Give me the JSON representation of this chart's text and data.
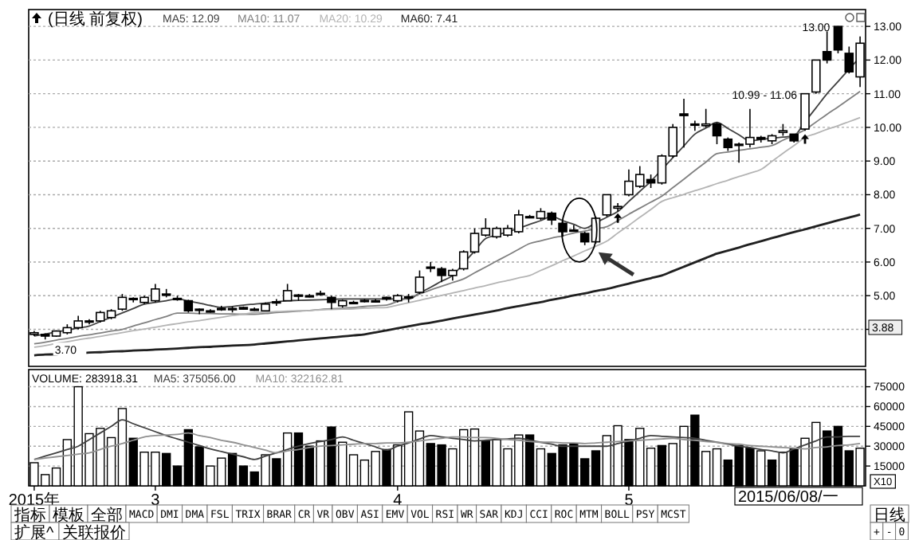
{
  "chart_data": [
    {
      "type": "candlestick",
      "title": "(日线 前复权)",
      "legend": "top left",
      "grid": "y",
      "tick_labels": "y",
      "categories": [
        null,
        null,
        null,
        null,
        null,
        null,
        null,
        null,
        null,
        null,
        null,
        null,
        null,
        null,
        null,
        null,
        null,
        null,
        null,
        null,
        null,
        null,
        null,
        null,
        null,
        null,
        null,
        null,
        null,
        null,
        null,
        null,
        null,
        null,
        null,
        null,
        null,
        null,
        null,
        null,
        null,
        null,
        null,
        null,
        null,
        null,
        null,
        null,
        null,
        null,
        null,
        null,
        null,
        null,
        null,
        null,
        null,
        null,
        null,
        null,
        null,
        null,
        null,
        null,
        null,
        null,
        null,
        null,
        null,
        null,
        null,
        null,
        null,
        null,
        null,
        null
      ],
      "ylim": [
        2.9,
        13.5
      ],
      "yticks": [
        {
          "value": 4,
          "label": null
        },
        {
          "value": 5,
          "label": "5.00"
        },
        {
          "value": 6,
          "label": "6.00"
        },
        {
          "value": 7,
          "label": "7.00"
        },
        {
          "value": 8,
          "label": "8.00"
        },
        {
          "value": 9,
          "label": "9.00"
        },
        {
          "value": 10,
          "label": "10.00"
        },
        {
          "value": 11,
          "label": "11.00"
        },
        {
          "value": 12,
          "label": "12.00"
        },
        {
          "value": 13,
          "label": "13.00"
        }
      ],
      "ohlc": [
        [
          3.85,
          3.95,
          3.8,
          3.9
        ],
        [
          3.85,
          3.88,
          3.7,
          3.8
        ],
        [
          3.8,
          3.97,
          3.78,
          3.95
        ],
        [
          3.9,
          4.15,
          3.85,
          4.05
        ],
        [
          4.05,
          4.4,
          4.0,
          4.25
        ],
        [
          4.22,
          4.3,
          4.15,
          4.25
        ],
        [
          4.25,
          4.55,
          4.2,
          4.5
        ],
        [
          4.35,
          4.6,
          4.3,
          4.55
        ],
        [
          4.6,
          5.05,
          4.55,
          4.95
        ],
        [
          4.9,
          4.95,
          4.8,
          4.92
        ],
        [
          4.8,
          5.0,
          4.75,
          4.95
        ],
        [
          4.85,
          5.35,
          4.8,
          5.2
        ],
        [
          5.05,
          5.2,
          4.95,
          5.05
        ],
        [
          4.9,
          5.0,
          4.85,
          4.92
        ],
        [
          4.85,
          4.88,
          4.5,
          4.55
        ],
        [
          4.6,
          4.62,
          4.45,
          4.6
        ],
        [
          4.55,
          4.6,
          4.5,
          4.52
        ],
        [
          4.6,
          4.7,
          4.55,
          4.62
        ],
        [
          4.6,
          4.68,
          4.5,
          4.62
        ],
        [
          4.65,
          4.68,
          4.58,
          4.6
        ],
        [
          4.6,
          4.65,
          4.55,
          4.58
        ],
        [
          4.55,
          4.8,
          4.55,
          4.75
        ],
        [
          4.8,
          4.9,
          4.7,
          4.82
        ],
        [
          4.85,
          5.35,
          4.85,
          5.15
        ],
        [
          5.0,
          5.05,
          4.85,
          5.02
        ],
        [
          5.0,
          5.05,
          4.95,
          4.98
        ],
        [
          5.05,
          5.15,
          5.0,
          5.07
        ],
        [
          4.95,
          5.0,
          4.6,
          4.8
        ],
        [
          4.7,
          4.88,
          4.65,
          4.85
        ],
        [
          4.8,
          4.85,
          4.75,
          4.78
        ],
        [
          4.85,
          4.9,
          4.8,
          4.86
        ],
        [
          4.85,
          4.9,
          4.8,
          4.84
        ],
        [
          4.95,
          4.97,
          4.85,
          4.9
        ],
        [
          4.85,
          5.05,
          4.8,
          5.0
        ],
        [
          4.95,
          5.05,
          4.8,
          4.97
        ],
        [
          5.1,
          5.75,
          5.05,
          5.55
        ],
        [
          5.85,
          6.0,
          5.7,
          5.82
        ],
        [
          5.8,
          5.85,
          5.4,
          5.6
        ],
        [
          5.6,
          5.8,
          5.45,
          5.75
        ],
        [
          5.8,
          6.35,
          5.75,
          6.3
        ],
        [
          6.3,
          7.0,
          6.25,
          6.85
        ],
        [
          6.8,
          7.3,
          6.75,
          7.0
        ],
        [
          6.75,
          7.05,
          6.7,
          7.0
        ],
        [
          6.8,
          7.1,
          6.75,
          7.0
        ],
        [
          6.9,
          7.55,
          6.85,
          7.4
        ],
        [
          7.35,
          7.4,
          7.3,
          7.35
        ],
        [
          7.3,
          7.6,
          7.25,
          7.5
        ],
        [
          7.45,
          7.5,
          7.1,
          7.25
        ],
        [
          7.15,
          7.2,
          6.75,
          6.9
        ],
        [
          6.95,
          7.1,
          6.9,
          6.95
        ],
        [
          6.85,
          6.9,
          6.5,
          6.6
        ],
        [
          6.6,
          7.35,
          6.55,
          7.3
        ],
        [
          7.4,
          8.0,
          7.35,
          8.0
        ],
        [
          7.6,
          7.75,
          7.5,
          7.65
        ],
        [
          8.0,
          8.75,
          7.95,
          8.4
        ],
        [
          8.25,
          8.85,
          8.2,
          8.6
        ],
        [
          8.45,
          8.6,
          8.2,
          8.35
        ],
        [
          8.35,
          9.2,
          8.3,
          9.15
        ],
        [
          9.15,
          10.1,
          9.1,
          10.0
        ],
        [
          10.4,
          10.85,
          9.4,
          10.35
        ],
        [
          10.1,
          10.2,
          9.9,
          10.1
        ],
        [
          10.05,
          10.55,
          10.0,
          10.1
        ],
        [
          10.1,
          10.15,
          9.5,
          9.75
        ],
        [
          9.65,
          9.7,
          9.3,
          9.4
        ],
        [
          9.5,
          9.55,
          8.95,
          9.5
        ],
        [
          9.5,
          10.55,
          9.4,
          9.7
        ],
        [
          9.7,
          9.75,
          9.55,
          9.65
        ],
        [
          9.6,
          9.8,
          9.5,
          9.75
        ],
        [
          9.85,
          10.1,
          9.75,
          9.9
        ],
        [
          9.8,
          9.8,
          9.55,
          9.6
        ],
        [
          9.95,
          11.0,
          9.9,
          11.0
        ],
        [
          11.05,
          12.0,
          11.0,
          12.0
        ],
        [
          12.25,
          12.85,
          11.9,
          12.0
        ],
        [
          13.0,
          13.0,
          12.2,
          12.3
        ],
        [
          12.2,
          12.4,
          11.6,
          11.65
        ],
        [
          11.5,
          12.7,
          11.2,
          12.5
        ]
      ],
      "series": [
        {
          "type": "line",
          "name": "MA5: 12.09",
          "color": "#404040",
          "values": [
            3.8,
            3.86,
            3.92,
            3.98,
            4.04,
            4.1,
            4.23,
            4.36,
            4.49,
            4.62,
            4.75,
            4.8,
            4.85,
            4.9,
            4.84,
            4.78,
            4.71,
            4.65,
            4.68,
            4.72,
            4.75,
            4.78,
            4.82,
            4.85,
            4.86,
            4.87,
            4.88,
            4.89,
            4.9,
            4.9,
            4.9,
            4.9,
            4.9,
            4.9,
            4.9,
            5.08,
            5.25,
            5.43,
            5.6,
            5.97,
            6.33,
            6.7,
            6.8,
            6.9,
            7.0,
            7.12,
            7.23,
            7.35,
            7.23,
            7.12,
            7.0,
            7.17,
            7.33,
            7.5,
            7.8,
            8.1,
            8.4,
            8.75,
            9.1,
            9.45,
            9.8,
            9.98,
            10.15,
            9.97,
            9.78,
            9.6,
            9.64,
            9.68,
            9.71,
            9.75,
            10.17,
            10.58,
            11.0,
            11.36,
            11.73,
            12.09
          ]
        },
        {
          "type": "line",
          "name": "MA10: 11.07",
          "color": "#808080",
          "values": [
            3.57,
            3.62,
            3.68,
            3.73,
            3.79,
            3.84,
            3.89,
            3.95,
            4.0,
            4.1,
            4.19,
            4.29,
            4.38,
            4.48,
            4.48,
            4.47,
            4.47,
            4.46,
            4.46,
            4.45,
            4.45,
            4.47,
            4.5,
            4.52,
            4.54,
            4.56,
            4.59,
            4.61,
            4.63,
            4.65,
            4.68,
            4.7,
            4.72,
            4.83,
            4.94,
            5.05,
            5.17,
            5.28,
            5.39,
            5.5,
            5.68,
            5.85,
            6.03,
            6.2,
            6.38,
            6.55,
            6.63,
            6.71,
            6.78,
            6.86,
            6.92,
            6.99,
            7.05,
            7.23,
            7.42,
            7.6,
            7.78,
            7.96,
            8.21,
            8.46,
            8.72,
            8.97,
            9.22,
            9.27,
            9.32,
            9.36,
            9.41,
            9.46,
            9.62,
            9.77,
            9.93,
            10.16,
            10.39,
            10.61,
            10.84,
            11.07
          ]
        },
        {
          "type": "line",
          "name": "MA20: 10.29",
          "color": "#b4b4b4",
          "values": [
            3.47,
            3.52,
            3.58,
            3.63,
            3.69,
            3.74,
            3.79,
            3.85,
            3.9,
            3.96,
            4.01,
            4.06,
            4.12,
            4.17,
            4.22,
            4.26,
            4.31,
            4.36,
            4.41,
            4.45,
            4.5,
            4.51,
            4.53,
            4.54,
            4.55,
            4.56,
            4.58,
            4.59,
            4.6,
            4.61,
            4.63,
            4.64,
            4.65,
            4.72,
            4.79,
            4.86,
            4.94,
            5.01,
            5.08,
            5.15,
            5.23,
            5.3,
            5.38,
            5.45,
            5.53,
            5.6,
            5.75,
            5.89,
            6.04,
            6.18,
            6.33,
            6.47,
            6.62,
            6.86,
            7.09,
            7.33,
            7.56,
            7.8,
            7.91,
            8.01,
            8.12,
            8.22,
            8.33,
            8.43,
            8.54,
            8.64,
            8.75,
            8.99,
            9.23,
            9.46,
            9.7,
            9.82,
            9.94,
            10.05,
            10.17,
            10.29
          ]
        },
        {
          "type": "line",
          "name": "MA60: 7.41",
          "color": "#202020",
          "values": [
            3.23,
            3.25,
            3.26,
            3.28,
            3.29,
            3.31,
            3.32,
            3.34,
            3.35,
            3.37,
            3.38,
            3.4,
            3.41,
            3.43,
            3.45,
            3.47,
            3.48,
            3.5,
            3.52,
            3.53,
            3.55,
            3.58,
            3.61,
            3.64,
            3.67,
            3.7,
            3.73,
            3.76,
            3.79,
            3.82,
            3.85,
            3.91,
            3.97,
            4.03,
            4.09,
            4.15,
            4.2,
            4.26,
            4.32,
            4.38,
            4.44,
            4.5,
            4.56,
            4.63,
            4.69,
            4.75,
            4.81,
            4.88,
            4.94,
            5.01,
            5.07,
            5.14,
            5.2,
            5.28,
            5.36,
            5.44,
            5.52,
            5.6,
            5.73,
            5.86,
            5.99,
            6.12,
            6.25,
            6.34,
            6.43,
            6.53,
            6.62,
            6.71,
            6.8,
            6.89,
            6.97,
            7.06,
            7.15,
            7.24,
            7.32,
            7.41
          ]
        }
      ],
      "annotations": [
        "13.00",
        "10.99 - 11.06",
        "3.70",
        "3.88"
      ]
    },
    {
      "type": "bar",
      "legend": "top left",
      "grid": "y",
      "ylabel": "X10",
      "categories": [
        "2015年",
        null,
        null,
        null,
        null,
        null,
        null,
        null,
        null,
        null,
        null,
        "3",
        null,
        null,
        null,
        null,
        null,
        null,
        null,
        null,
        null,
        null,
        null,
        null,
        null,
        null,
        null,
        null,
        null,
        null,
        null,
        null,
        null,
        "4",
        null,
        null,
        null,
        null,
        null,
        null,
        null,
        null,
        null,
        null,
        null,
        null,
        null,
        null,
        null,
        null,
        null,
        null,
        null,
        null,
        "5",
        null,
        null,
        null,
        null,
        null,
        null,
        null,
        null,
        null,
        null,
        null,
        null,
        null,
        null,
        null,
        null,
        null,
        null,
        null,
        null,
        null
      ],
      "ylim": [
        0,
        88000
      ],
      "yticks": [
        15000,
        30000,
        45000,
        60000,
        75000
      ],
      "series": [
        {
          "type": "bar",
          "name": "VOLUME: 283918.31",
          "values": [
            17500,
            8500,
            13500,
            35000,
            75000,
            39500,
            43500,
            36500,
            58500,
            36000,
            25500,
            25500,
            24500,
            15000,
            42500,
            29500,
            15000,
            21000,
            24500,
            15000,
            10500,
            23500,
            20500,
            40000,
            40000,
            30000,
            34000,
            44500,
            33000,
            23500,
            19500,
            26000,
            27500,
            31000,
            56000,
            41500,
            32000,
            31000,
            28000,
            42500,
            43000,
            34000,
            35000,
            28000,
            38500,
            38500,
            28000,
            24500,
            31000,
            32000,
            20500,
            26500,
            38000,
            45500,
            35000,
            43500,
            28500,
            30500,
            32000,
            45000,
            53500,
            26000,
            28000,
            19500,
            30500,
            28500,
            26500,
            19500,
            25500,
            28500,
            36000,
            48000,
            41500,
            45000,
            26500,
            28500
          ],
          "colors": [
            "#ffffff",
            "#ffffff",
            "#ffffff",
            "#ffffff",
            "#ffffff",
            "#ffffff",
            "#ffffff",
            "#ffffff",
            "#ffffff",
            "#000000",
            "#ffffff",
            "#ffffff",
            "#000000",
            "#000000",
            "#000000",
            "#000000",
            "#ffffff",
            "#ffffff",
            "#000000",
            "#000000",
            "#000000",
            "#ffffff",
            "#000000",
            "#ffffff",
            "#000000",
            "#000000",
            "#ffffff",
            "#000000",
            "#ffffff",
            "#ffffff",
            "#ffffff",
            "#ffffff",
            "#000000",
            "#ffffff",
            "#ffffff",
            "#ffffff",
            "#000000",
            "#000000",
            "#ffffff",
            "#ffffff",
            "#ffffff",
            "#000000",
            "#ffffff",
            "#ffffff",
            "#ffffff",
            "#000000",
            "#ffffff",
            "#000000",
            "#000000",
            "#000000",
            "#000000",
            "#000000",
            "#ffffff",
            "#ffffff",
            "#000000",
            "#ffffff",
            "#ffffff",
            "#000000",
            "#ffffff",
            "#ffffff",
            "#000000",
            "#ffffff",
            "#ffffff",
            "#000000",
            "#000000",
            "#000000",
            "#ffffff",
            "#000000",
            "#ffffff",
            "#000000",
            "#ffffff",
            "#ffffff",
            "#000000",
            "#000000",
            "#000000",
            "#ffffff"
          ]
        },
        {
          "type": "line",
          "name": "MA5: 375056.00",
          "color": "#404040",
          "values": [
            20000,
            22500,
            25000,
            27500,
            30000,
            35000,
            40000,
            45000,
            50000,
            47000,
            44000,
            41000,
            38000,
            35500,
            33000,
            30500,
            28000,
            26000,
            24000,
            22000,
            20000,
            22500,
            25000,
            27500,
            30000,
            32000,
            33500,
            35000,
            37000,
            34500,
            32000,
            29500,
            27000,
            30000,
            32500,
            35500,
            38000,
            37000,
            36000,
            35000,
            34000,
            34500,
            35000,
            35500,
            36000,
            34500,
            33000,
            31500,
            30000,
            30000,
            30000,
            30000,
            30000,
            32000,
            34000,
            36000,
            38000,
            37500,
            37000,
            36500,
            36000,
            34500,
            33000,
            31500,
            30000,
            29000,
            27500,
            26500,
            25000,
            28000,
            31000,
            34000,
            37000,
            37000,
            37500,
            37500
          ]
        },
        {
          "type": "line",
          "name": "MA10: 322162.81",
          "color": "#909090",
          "values": [
            20000,
            21000,
            22000,
            23000,
            24000,
            25000,
            27500,
            30000,
            32000,
            34500,
            37000,
            38000,
            38500,
            39000,
            40000,
            38000,
            36500,
            34500,
            33000,
            31000,
            29000,
            27000,
            25000,
            26500,
            27500,
            29000,
            30000,
            30500,
            31000,
            31500,
            32000,
            32000,
            32500,
            32500,
            33000,
            34000,
            35000,
            36000,
            37000,
            37000,
            36500,
            36500,
            36000,
            35000,
            34500,
            33500,
            33000,
            33000,
            32500,
            32500,
            32000,
            32500,
            33000,
            33500,
            34000,
            34500,
            35000,
            35500,
            36000,
            35000,
            34500,
            33500,
            33000,
            32000,
            31500,
            30500,
            30000,
            29500,
            29000,
            28500,
            28000,
            29000,
            29500,
            30500,
            31000,
            32000
          ]
        }
      ],
      "annotations": [
        "2015/06/08/一"
      ]
    },
    {
      "type": "other",
      "annotations": [
        "指标",
        "模板",
        "全部",
        "MACD",
        "DMI",
        "DMA",
        "FSL",
        "TRIX",
        "BRAR",
        "CR",
        "VR",
        "OBV",
        "ASI",
        "EMV",
        "VOL",
        "RSI",
        "WR",
        "SAR",
        "KDJ",
        "CCI",
        "ROC",
        "MTM",
        "BOLL",
        "PSY",
        "MCST",
        "扩展^",
        "关联报价",
        "日线",
        "+",
        "-",
        "0"
      ]
    }
  ]
}
